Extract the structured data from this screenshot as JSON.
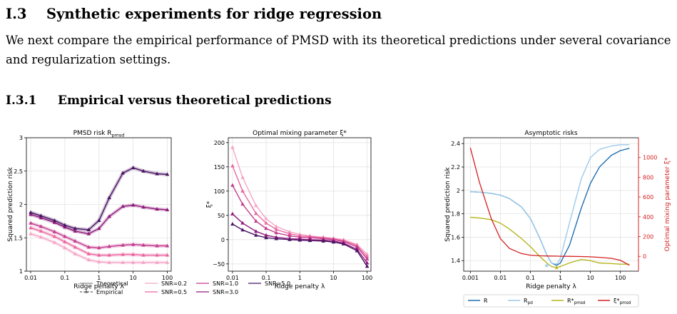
{
  "section": {
    "number": "I.3",
    "title": "Synthetic experiments for ridge regression"
  },
  "paragraph": "We next compare the empirical performance of PMSD with its theoretical predictions under several covariance and regularization settings.",
  "subsection": {
    "number": "I.3.1",
    "title": "Empirical versus theoretical predictions"
  },
  "colors": {
    "snr_0_2": "#f4a6c6",
    "snr_0_5": "#e9679f",
    "snr_1_0": "#c43c8f",
    "snr_3_0": "#8f1a7a",
    "snr_5_0": "#4b1464",
    "R": "#1f6fb0",
    "R_pd": "#9ccaea",
    "R_pmsd": "#b5b51d",
    "xi": "#d42020",
    "grid": "#e3e3e3"
  },
  "chart_data": [
    {
      "type": "line",
      "title": "PMSD risk R_pmsd",
      "xlabel": "Ridge penalty λ",
      "ylabel": "Squared prediction risk",
      "xscale": "log",
      "xlim": [
        0.0075,
        130
      ],
      "ylim": [
        1,
        3
      ],
      "xticks": [
        "0.01",
        "0.1",
        "1",
        "10",
        "100"
      ],
      "yticks": [
        "1",
        "1.5",
        "2",
        "2.5",
        "3"
      ],
      "x": [
        0.01,
        0.02,
        0.05,
        0.1,
        0.2,
        0.5,
        1,
        2,
        5,
        10,
        20,
        50,
        100
      ],
      "series": [
        {
          "name": "SNR=0.2",
          "values": [
            1.56,
            1.51,
            1.43,
            1.35,
            1.26,
            1.17,
            1.14,
            1.13,
            1.13,
            1.13,
            1.13,
            1.13,
            1.13
          ]
        },
        {
          "name": "SNR=0.5",
          "values": [
            1.65,
            1.6,
            1.52,
            1.44,
            1.36,
            1.26,
            1.24,
            1.24,
            1.25,
            1.25,
            1.24,
            1.24,
            1.24
          ]
        },
        {
          "name": "SNR=1.0",
          "values": [
            1.72,
            1.67,
            1.59,
            1.52,
            1.45,
            1.36,
            1.35,
            1.37,
            1.39,
            1.4,
            1.39,
            1.38,
            1.38
          ]
        },
        {
          "name": "SNR=3.0",
          "values": [
            1.85,
            1.8,
            1.73,
            1.66,
            1.6,
            1.56,
            1.64,
            1.82,
            1.97,
            1.99,
            1.96,
            1.93,
            1.92
          ]
        },
        {
          "name": "SNR=5.0",
          "values": [
            1.88,
            1.83,
            1.76,
            1.69,
            1.64,
            1.62,
            1.76,
            2.1,
            2.47,
            2.55,
            2.5,
            2.46,
            2.45
          ]
        }
      ],
      "legend": [
        {
          "label": "Theoretical",
          "style": "solid-gray"
        },
        {
          "label": "Empirical",
          "style": "dashed-triangle"
        },
        {
          "label": "SNR=0.2"
        },
        {
          "label": "SNR=0.5"
        },
        {
          "label": "SNR=1.0"
        },
        {
          "label": "SNR=3.0"
        },
        {
          "label": "SNR=5.0"
        }
      ]
    },
    {
      "type": "line",
      "title": "Optimal mixing parameter ξ*",
      "xlabel": "Ridge penalty λ",
      "ylabel": "ξ*",
      "xscale": "log",
      "xlim": [
        0.0075,
        130
      ],
      "ylim": [
        -65,
        210
      ],
      "xticks": [
        "0.01",
        "0.1",
        "1",
        "10",
        "100"
      ],
      "yticks": [
        "−50",
        "0",
        "50",
        "100",
        "150",
        "200"
      ],
      "x": [
        0.01,
        0.02,
        0.05,
        0.1,
        0.2,
        0.5,
        1,
        2,
        5,
        10,
        20,
        50,
        100
      ],
      "series": [
        {
          "name": "SNR=0.2",
          "values": [
            190,
            128,
            70,
            43,
            27,
            16,
            11,
            8,
            5,
            3,
            0,
            -10,
            -30
          ]
        },
        {
          "name": "SNR=0.5",
          "values": [
            152,
            100,
            54,
            34,
            21,
            12,
            8,
            6,
            4,
            2,
            -2,
            -12,
            -35
          ]
        },
        {
          "name": "SNR=1.0",
          "values": [
            112,
            73,
            38,
            23,
            14,
            8,
            5,
            4,
            2,
            0,
            -4,
            -15,
            -40
          ]
        },
        {
          "name": "SNR=3.0",
          "values": [
            53,
            34,
            17,
            9,
            5,
            2,
            1,
            0,
            -1,
            -3,
            -7,
            -20,
            -48
          ]
        },
        {
          "name": "SNR=5.0",
          "values": [
            32,
            20,
            9,
            4,
            2,
            0,
            -1,
            -2,
            -3,
            -5,
            -9,
            -23,
            -55
          ]
        }
      ]
    },
    {
      "type": "line",
      "title": "Asymptotic risks",
      "xlabel": "Ridge penalty λ",
      "ylabel": "Squared prediction risk",
      "ylabel_right": "Optimal mixing parameter ξ*",
      "xscale": "log",
      "xlim": [
        0.0006,
        400
      ],
      "ylim": [
        1.31,
        2.45
      ],
      "ylim_right": [
        -150,
        1200
      ],
      "xticks": [
        "0.001",
        "0.01",
        "0.1",
        "1",
        "10",
        "100"
      ],
      "yticks": [
        "1.4",
        "1.6",
        "1.8",
        "2",
        "2.2",
        "2.4"
      ],
      "yticks_right": [
        "0",
        "200",
        "400",
        "600",
        "800",
        "1000"
      ],
      "x": [
        0.001,
        0.002,
        0.005,
        0.01,
        0.02,
        0.05,
        0.1,
        0.2,
        0.35,
        0.5,
        0.75,
        1,
        2,
        5,
        10,
        20,
        50,
        100,
        200
      ],
      "series": [
        {
          "name": "R",
          "values": [
            1.99,
            1.985,
            1.975,
            1.96,
            1.93,
            1.86,
            1.76,
            1.6,
            1.45,
            1.38,
            1.36,
            1.38,
            1.53,
            1.85,
            2.06,
            2.2,
            2.3,
            2.34,
            2.36
          ]
        },
        {
          "name": "R_pd",
          "values": [
            1.99,
            1.985,
            1.975,
            1.96,
            1.93,
            1.86,
            1.76,
            1.6,
            1.45,
            1.38,
            1.37,
            1.42,
            1.72,
            2.1,
            2.28,
            2.35,
            2.38,
            2.39,
            2.39
          ]
        },
        {
          "name": "R*_pmsd",
          "values": [
            1.77,
            1.765,
            1.75,
            1.72,
            1.67,
            1.59,
            1.52,
            1.44,
            1.38,
            1.35,
            1.34,
            1.35,
            1.38,
            1.41,
            1.4,
            1.38,
            1.375,
            1.37,
            1.37
          ]
        },
        {
          "name": "ξ*_pmsd",
          "axis": "right",
          "values": [
            1100,
            750,
            380,
            180,
            80,
            28,
            12,
            6,
            4,
            3,
            2,
            1,
            0,
            -2,
            -5,
            -10,
            -20,
            -40,
            -90
          ]
        }
      ],
      "legend": [
        "R",
        "R_pd",
        "R*_pmsd",
        "ξ*_pmsd"
      ]
    }
  ]
}
